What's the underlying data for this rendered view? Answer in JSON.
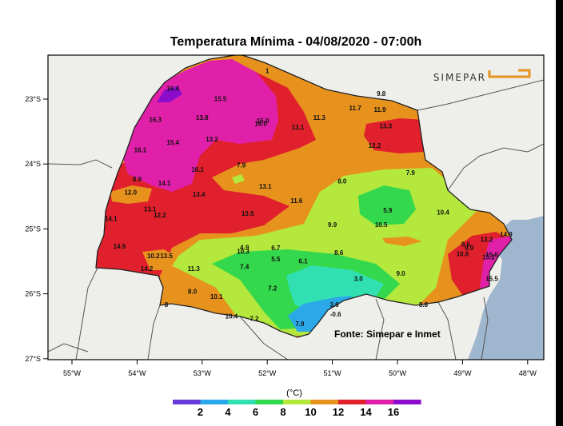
{
  "title": "Temperatura Mínima - 04/08/2020 - 07:00h",
  "brand": "SIMEPAR",
  "credit": "Fonte: Simepar e Inmet",
  "legend": {
    "title": "(°C)",
    "labels": [
      "2",
      "4",
      "6",
      "8",
      "10",
      "12",
      "14",
      "16"
    ],
    "colors": [
      "#6a3ad8",
      "#2aa8e8",
      "#30e0b0",
      "#34d84c",
      "#b4e83c",
      "#e8921e",
      "#e0202c",
      "#e020a8",
      "#8c0ccc"
    ]
  },
  "axes": {
    "lat_labels": [
      "23°S",
      "24°S",
      "25°S",
      "26°S",
      "27°S"
    ],
    "lon_labels": [
      "55°W",
      "54°W",
      "53°W",
      "52°W",
      "51°W",
      "50°W",
      "49°W",
      "48°W"
    ]
  },
  "stations": [
    {
      "v": "16.4",
      "lon": -53.45,
      "lat": -22.87
    },
    {
      "v": "15.5",
      "lon": -52.72,
      "lat": -23.03
    },
    {
      "v": "16.3",
      "lon": -53.72,
      "lat": -23.35
    },
    {
      "v": "13.8",
      "lon": -53.0,
      "lat": -23.32
    },
    {
      "v": "15.0",
      "lon": -52.07,
      "lat": -23.37
    },
    {
      "v": "16.0",
      "lon": -52.1,
      "lat": -23.41
    },
    {
      "v": "13.1",
      "lon": -51.53,
      "lat": -23.47
    },
    {
      "v": "11.3",
      "lon": -51.2,
      "lat": -23.32
    },
    {
      "v": "11.7",
      "lon": -50.65,
      "lat": -23.17
    },
    {
      "v": "9.8",
      "lon": -50.25,
      "lat": -22.95
    },
    {
      "v": "11.9",
      "lon": -50.27,
      "lat": -23.2
    },
    {
      "v": "13.3",
      "lon": -50.18,
      "lat": -23.45
    },
    {
      "v": "12.2",
      "lon": -50.35,
      "lat": -23.75
    },
    {
      "v": "15.4",
      "lon": -53.45,
      "lat": -23.7
    },
    {
      "v": "13.2",
      "lon": -52.85,
      "lat": -23.65
    },
    {
      "v": "16.1",
      "lon": -53.95,
      "lat": -23.82
    },
    {
      "v": "16.1",
      "lon": -53.07,
      "lat": -24.12
    },
    {
      "v": "7.9",
      "lon": -52.4,
      "lat": -24.05
    },
    {
      "v": "8.9",
      "lon": -54.0,
      "lat": -24.27
    },
    {
      "v": "14.1",
      "lon": -53.58,
      "lat": -24.33
    },
    {
      "v": "12.0",
      "lon": -54.1,
      "lat": -24.47
    },
    {
      "v": "13.4",
      "lon": -53.05,
      "lat": -24.5
    },
    {
      "v": "13.1",
      "lon": -52.03,
      "lat": -24.38
    },
    {
      "v": "11.6",
      "lon": -51.55,
      "lat": -24.6
    },
    {
      "v": "8.0",
      "lon": -50.85,
      "lat": -24.3
    },
    {
      "v": "7.9",
      "lon": -49.8,
      "lat": -24.17
    },
    {
      "v": "13.1",
      "lon": -53.8,
      "lat": -24.73
    },
    {
      "v": "12.2",
      "lon": -53.65,
      "lat": -24.82
    },
    {
      "v": "14.1",
      "lon": -54.4,
      "lat": -24.88
    },
    {
      "v": "13.5",
      "lon": -52.3,
      "lat": -24.8
    },
    {
      "v": "5.9",
      "lon": -50.15,
      "lat": -24.75
    },
    {
      "v": "10.4",
      "lon": -49.3,
      "lat": -24.78
    },
    {
      "v": "9.9",
      "lon": -51.0,
      "lat": -24.97
    },
    {
      "v": "10.5",
      "lon": -50.25,
      "lat": -24.97
    },
    {
      "v": "14.9",
      "lon": -54.27,
      "lat": -25.3
    },
    {
      "v": "4.9",
      "lon": -52.35,
      "lat": -25.32
    },
    {
      "v": "10.3",
      "lon": -52.37,
      "lat": -25.38
    },
    {
      "v": "6.7",
      "lon": -51.87,
      "lat": -25.33
    },
    {
      "v": "8.6",
      "lon": -50.9,
      "lat": -25.4
    },
    {
      "v": "9.6",
      "lon": -48.95,
      "lat": -25.27
    },
    {
      "v": "9.9",
      "lon": -48.9,
      "lat": -25.33
    },
    {
      "v": "13.2",
      "lon": -48.63,
      "lat": -25.2
    },
    {
      "v": "14.9",
      "lon": -48.33,
      "lat": -25.12
    },
    {
      "v": "10.2",
      "lon": -53.75,
      "lat": -25.45
    },
    {
      "v": "13.5",
      "lon": -53.55,
      "lat": -25.45
    },
    {
      "v": "5.5",
      "lon": -51.87,
      "lat": -25.5
    },
    {
      "v": "6.1",
      "lon": -51.45,
      "lat": -25.53
    },
    {
      "v": "10.6",
      "lon": -49.0,
      "lat": -25.42
    },
    {
      "v": "15.2",
      "lon": -48.6,
      "lat": -25.47
    },
    {
      "v": "15.6",
      "lon": -48.55,
      "lat": -25.43
    },
    {
      "v": "14.2",
      "lon": -53.85,
      "lat": -25.65
    },
    {
      "v": "11.3",
      "lon": -53.13,
      "lat": -25.65
    },
    {
      "v": "7.4",
      "lon": -52.35,
      "lat": -25.62
    },
    {
      "v": "9.0",
      "lon": -49.95,
      "lat": -25.72
    },
    {
      "v": "3.0",
      "lon": -50.6,
      "lat": -25.8
    },
    {
      "v": "15.5",
      "lon": -48.55,
      "lat": -25.8
    },
    {
      "v": "7.2",
      "lon": -51.92,
      "lat": -25.95
    },
    {
      "v": "8.0",
      "lon": -53.15,
      "lat": -26.0
    },
    {
      "v": "10.1",
      "lon": -52.78,
      "lat": -26.08
    },
    {
      "v": "3.6",
      "lon": -50.97,
      "lat": -26.2
    },
    {
      "v": "8.8",
      "lon": -49.6,
      "lat": -26.2
    },
    {
      "v": "-0.6",
      "lon": -50.95,
      "lat": -26.35
    },
    {
      "v": "10.4",
      "lon": -52.55,
      "lat": -26.38
    },
    {
      "v": "7.2",
      "lon": -52.2,
      "lat": -26.42
    },
    {
      "v": "7.0",
      "lon": -51.5,
      "lat": -26.5
    },
    {
      "v": "8",
      "lon": -53.55,
      "lat": -26.2
    },
    {
      "v": "1",
      "lon": -52.0,
      "lat": -22.6
    }
  ]
}
